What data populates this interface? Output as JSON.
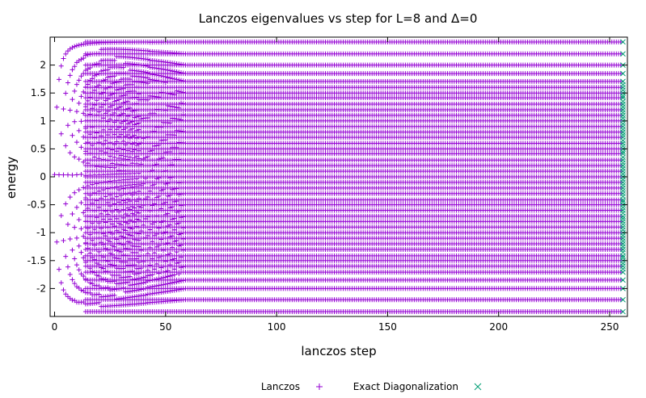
{
  "chart_data": {
    "type": "scatter",
    "title": "Lanczos eigenvalues vs step for L=8 and Δ=0",
    "xlabel": "lanczos step",
    "ylabel": "energy",
    "xlim": [
      -2,
      258
    ],
    "ylim": [
      -2.5,
      2.5
    ],
    "xticks": [
      0,
      50,
      100,
      150,
      200,
      250
    ],
    "yticks": [
      -2,
      -1.5,
      -1,
      -0.5,
      0,
      0.5,
      1,
      1.5,
      2
    ],
    "grid": false,
    "legend_position": "bottom",
    "lanczos_steps": 256,
    "series": [
      {
        "name": "Lanczos",
        "marker": "+",
        "color": "#9400d3"
      },
      {
        "name": "Exact Diagonalization",
        "marker": "x",
        "color": "#009e73"
      }
    ],
    "band_edges": [
      -2.414,
      2.414
    ],
    "converged_levels": [
      2.414,
      2.2,
      2.0,
      1.848,
      1.707,
      1.6,
      1.5,
      1.414,
      1.3,
      1.2,
      1.1,
      1.0,
      0.9,
      0.8,
      0.707,
      0.6,
      0.5,
      0.414,
      0.3,
      0.2,
      0.1,
      0.0,
      -0.1,
      -0.2,
      -0.3,
      -0.414,
      -0.5,
      -0.6,
      -0.707,
      -0.8,
      -0.9,
      -1.0,
      -1.1,
      -1.2,
      -1.3,
      -1.414,
      -1.5,
      -1.6,
      -1.707,
      -1.848,
      -2.0,
      -2.2,
      -2.414
    ],
    "exact_levels": [
      2.414,
      2.2,
      2.0,
      1.848,
      1.707,
      1.65,
      1.6,
      1.55,
      1.5,
      1.45,
      1.414,
      1.35,
      1.3,
      1.25,
      1.2,
      1.15,
      1.1,
      1.05,
      1.0,
      0.95,
      0.9,
      0.85,
      0.8,
      0.75,
      0.707,
      0.65,
      0.6,
      0.55,
      0.5,
      0.45,
      0.414,
      0.35,
      0.3,
      0.25,
      0.2,
      0.15,
      0.1,
      0.05,
      0.0,
      -0.05,
      -0.1,
      -0.15,
      -0.2,
      -0.25,
      -0.3,
      -0.35,
      -0.414,
      -0.45,
      -0.5,
      -0.55,
      -0.6,
      -0.65,
      -0.707,
      -0.75,
      -0.8,
      -0.85,
      -0.9,
      -0.95,
      -1.0,
      -1.05,
      -1.1,
      -1.15,
      -1.2,
      -1.25,
      -1.3,
      -1.35,
      -1.414,
      -1.45,
      -1.5,
      -1.55,
      -1.6,
      -1.65,
      -1.707,
      -1.848,
      -2.0,
      -2.2,
      -2.414
    ]
  }
}
